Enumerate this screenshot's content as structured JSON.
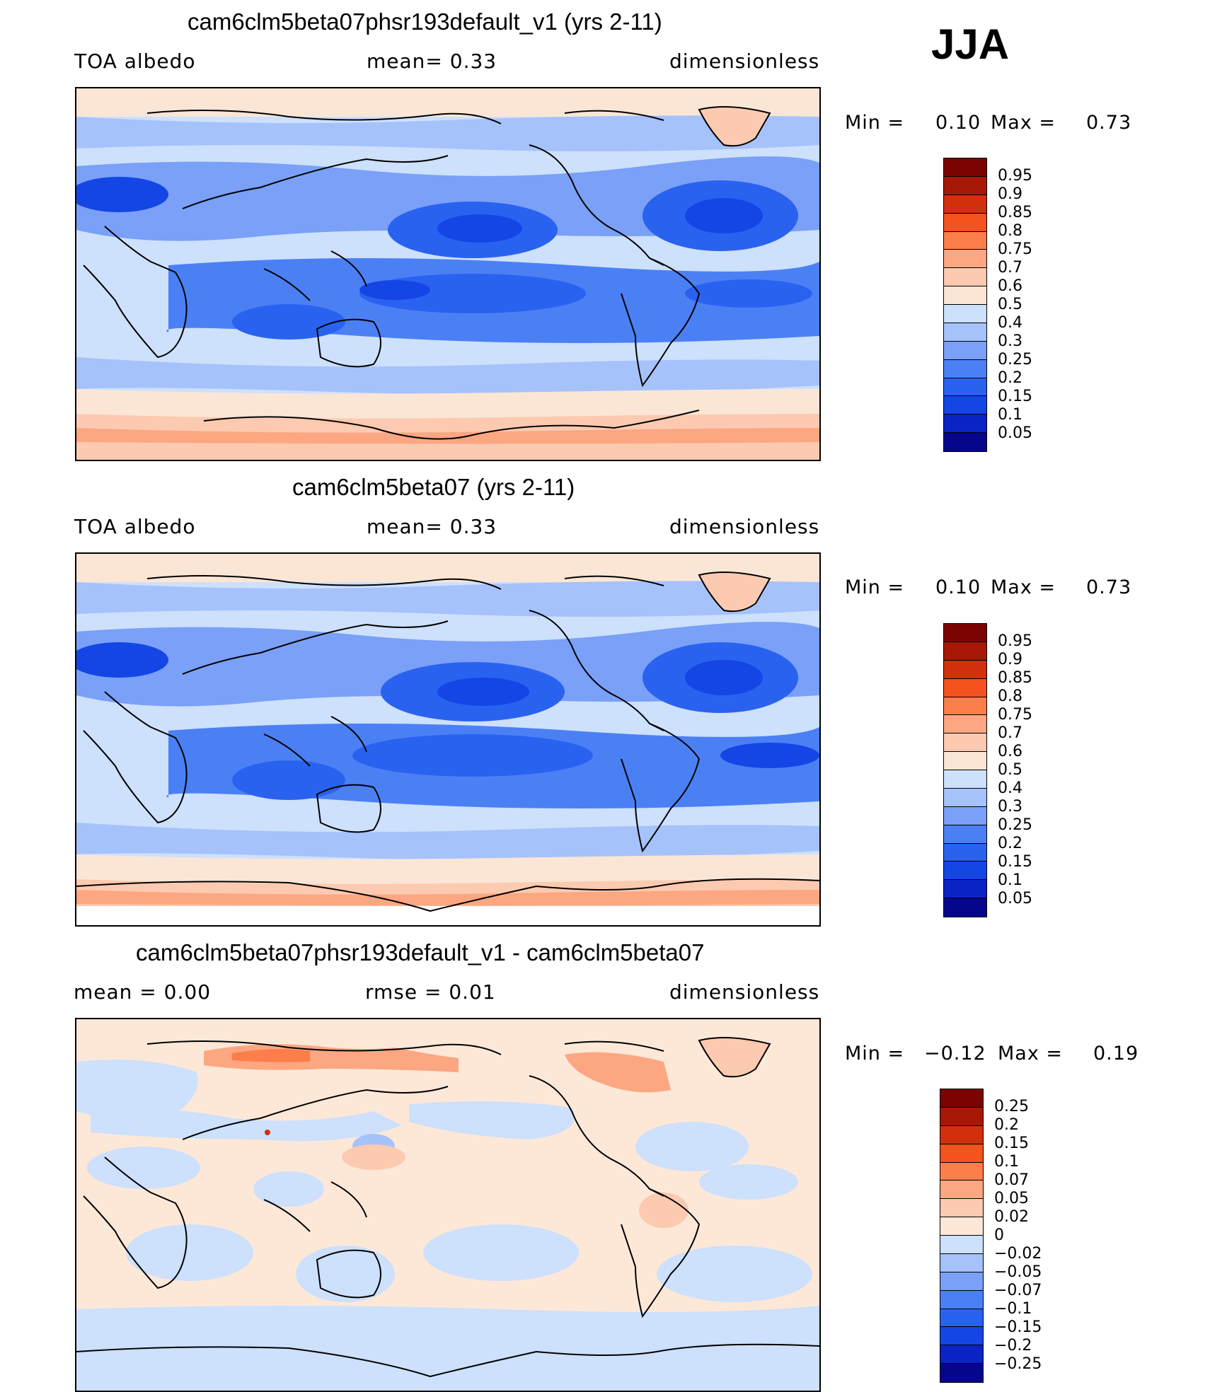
{
  "season": "JJA",
  "colors": {
    "seq": [
      "#06068c",
      "#0a23c4",
      "#1446e6",
      "#2a62f0",
      "#4b80f5",
      "#7aa0f7",
      "#a6c2fb",
      "#cde0fc",
      "#fbe6d6",
      "#fccab0",
      "#fca782",
      "#fc7e4b",
      "#f4521e",
      "#d2300c",
      "#a81806",
      "#7b0403"
    ],
    "diff": [
      "#06068c",
      "#0a23c4",
      "#1446e6",
      "#2a62f0",
      "#4b80f5",
      "#7aa0f7",
      "#a6c2fb",
      "#cde0fc",
      "#fde8d8",
      "#fccab0",
      "#fca782",
      "#fc7e4b",
      "#f4521e",
      "#d2300c",
      "#a81806",
      "#7b0403"
    ]
  },
  "panels": [
    {
      "title": "cam6clm5beta07phsr193default_v1 (yrs 2-11)",
      "left_label": "TOA  albedo",
      "center_label": "mean=     0.33",
      "right_label": "dimensionless",
      "min_label": "Min  =",
      "min_value": "0.10",
      "max_label": "Max  =",
      "max_value": "0.73",
      "colorbar_labels": [
        "0.95",
        "0.9",
        "0.85",
        "0.8",
        "0.75",
        "0.7",
        "0.6",
        "0.5",
        "0.4",
        "0.3",
        "0.25",
        "0.2",
        "0.15",
        "0.1",
        "0.05"
      ]
    },
    {
      "title": "cam6clm5beta07 (yrs 2-11)",
      "left_label": "TOA  albedo",
      "center_label": "mean=     0.33",
      "right_label": "dimensionless",
      "min_label": "Min  =",
      "min_value": "0.10",
      "max_label": "Max  =",
      "max_value": "0.73",
      "colorbar_labels": [
        "0.95",
        "0.9",
        "0.85",
        "0.8",
        "0.75",
        "0.7",
        "0.6",
        "0.5",
        "0.4",
        "0.3",
        "0.25",
        "0.2",
        "0.15",
        "0.1",
        "0.05"
      ]
    },
    {
      "title": "cam6clm5beta07phsr193default_v1 - cam6clm5beta07",
      "left_label": "mean  =     0.00",
      "center_label": "rmse  =     0.01",
      "right_label": "dimensionless",
      "min_label": "Min  =",
      "min_value": "−0.12",
      "max_label": "Max  =",
      "max_value": "0.19",
      "colorbar_labels": [
        "0.25",
        "0.2",
        "0.15",
        "0.1",
        "0.07",
        "0.05",
        "0.02",
        "0",
        "−0.02",
        "−0.05",
        "−0.07",
        "−0.1",
        "−0.15",
        "−0.2",
        "−0.25"
      ]
    }
  ]
}
